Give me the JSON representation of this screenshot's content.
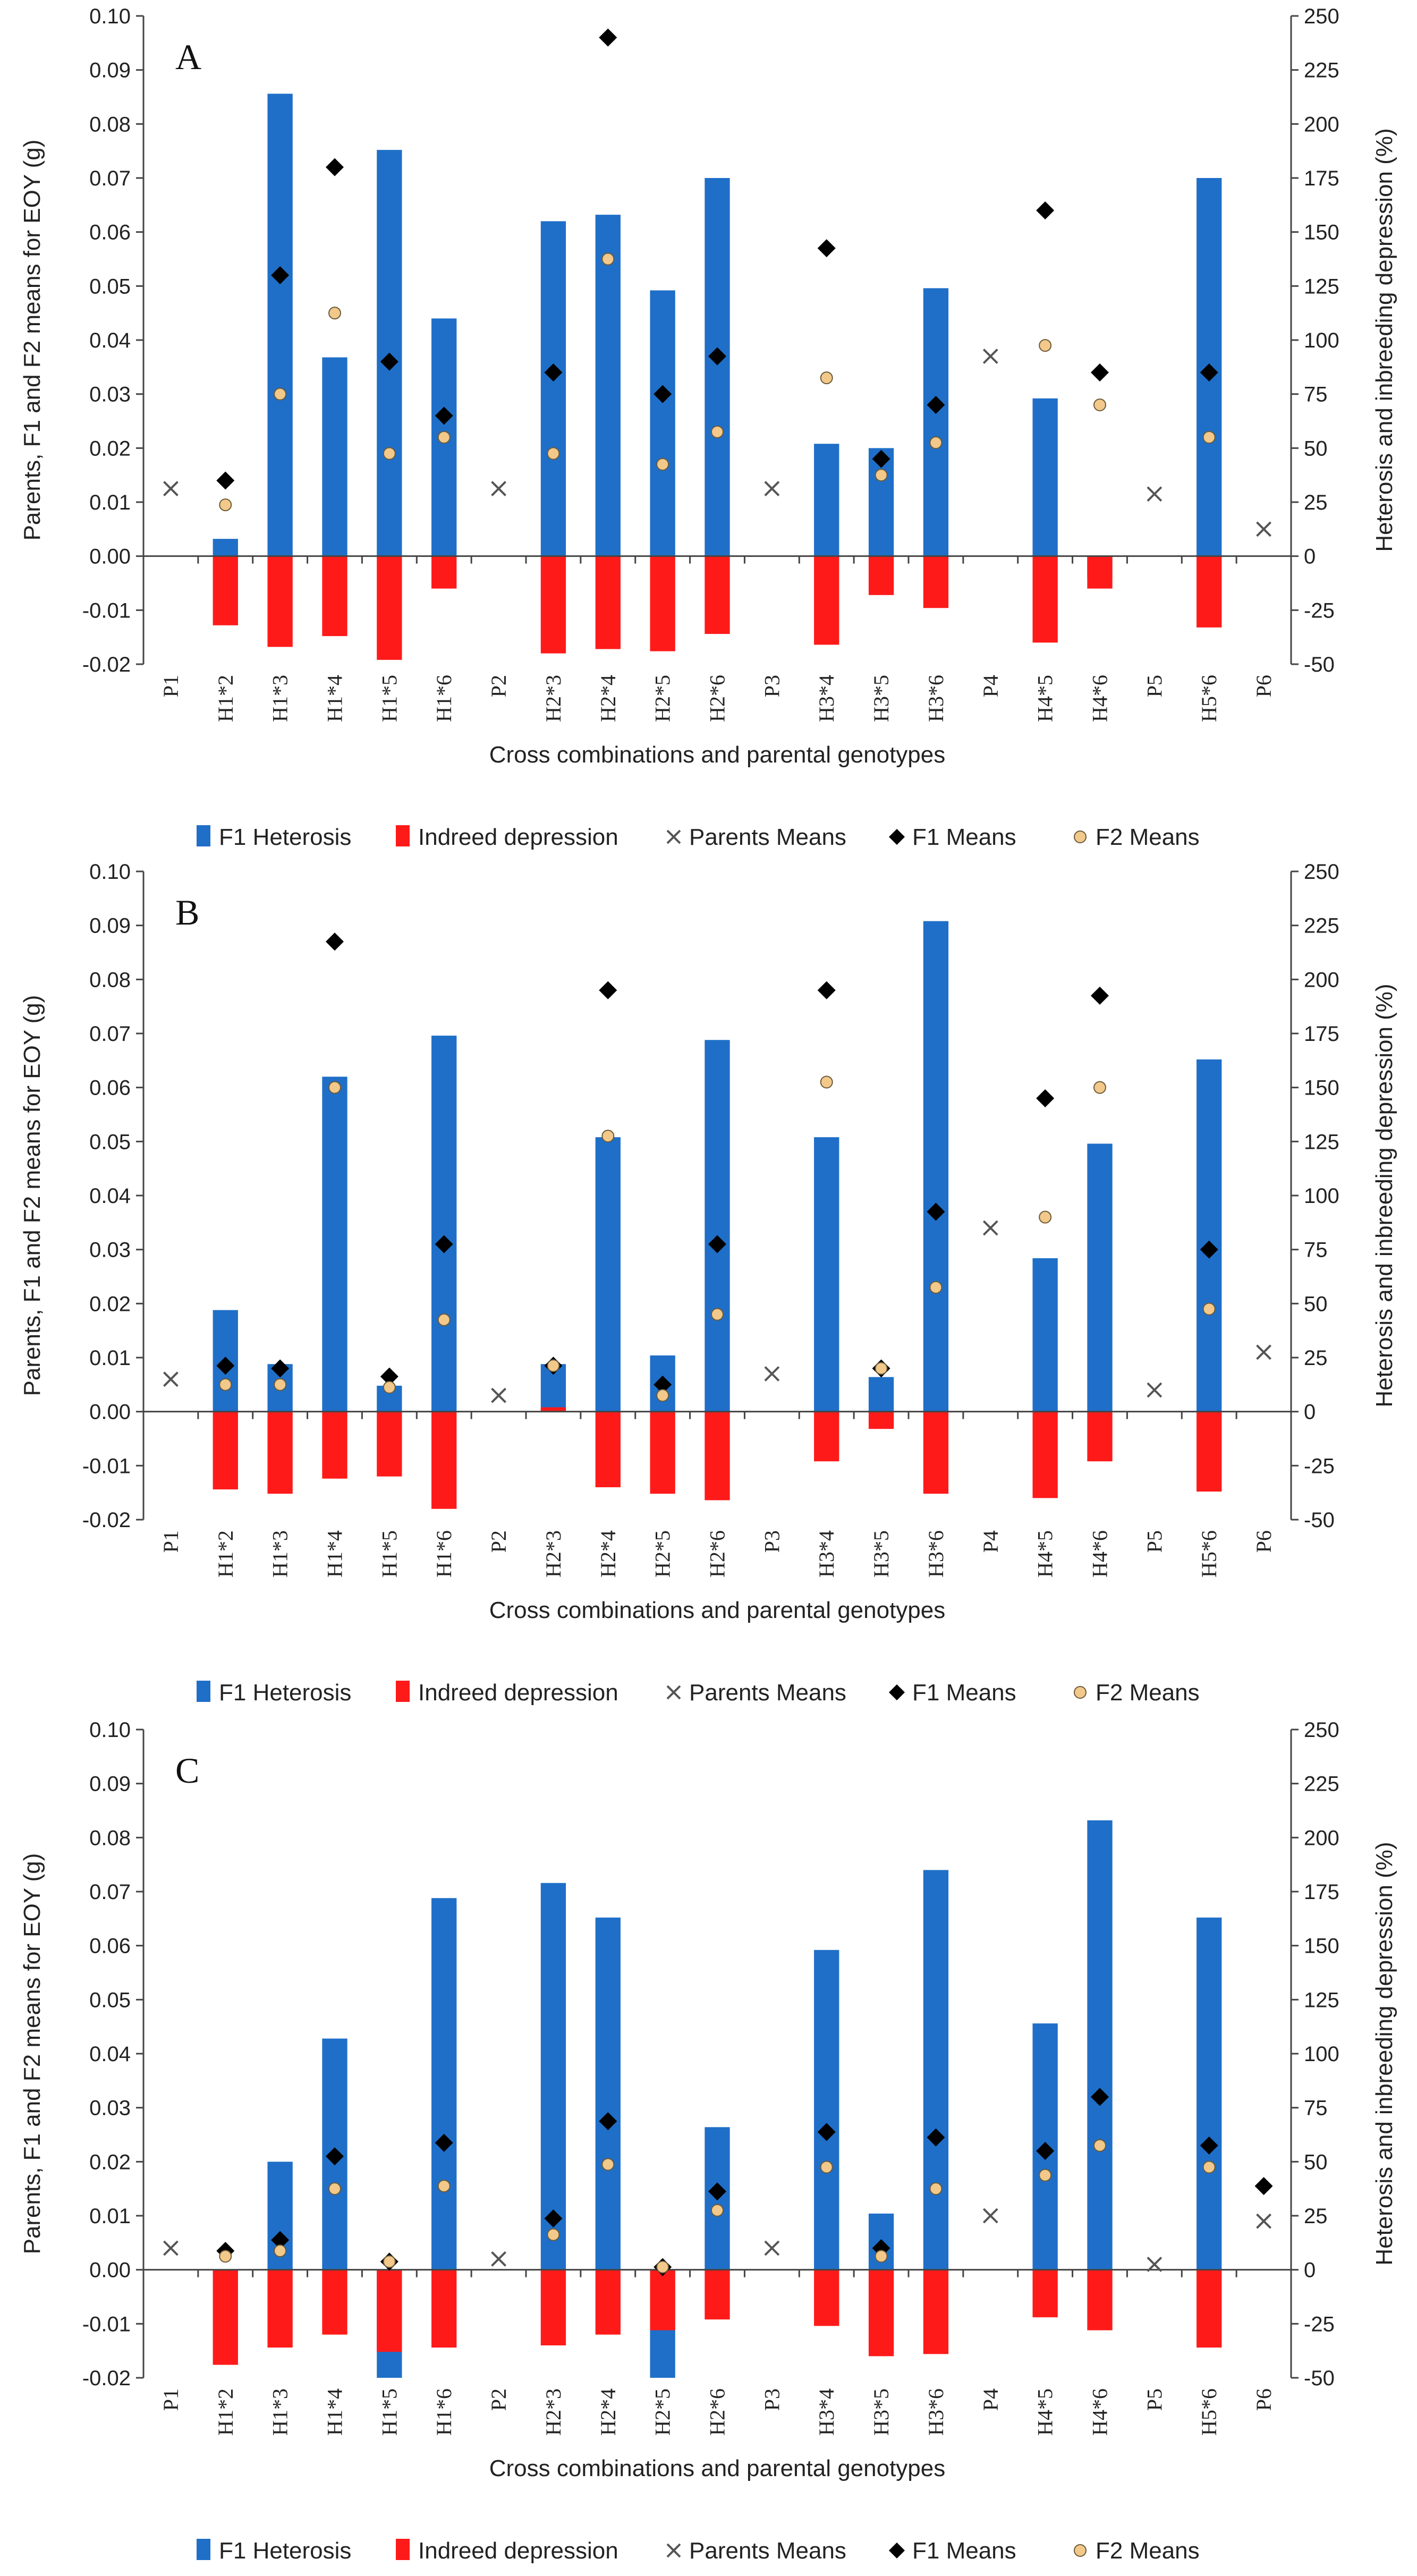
{
  "chart_data": [
    {
      "type": "bar",
      "panel_label": "A",
      "categories": [
        "P1",
        "H1*2",
        "H1*3",
        "H1*4",
        "H1*5",
        "H1*6",
        "P2",
        "H2*3",
        "H2*4",
        "H2*5",
        "H2*6",
        "P3",
        "H3*4",
        "H3*5",
        "H3*6",
        "P4",
        "H4*5",
        "H4*6",
        "P5",
        "H5*6",
        "P6"
      ],
      "xlabel": "Cross combinations and parental genotypes",
      "ylabel": "Parents, F1 and F2 means for EOY (g)",
      "y2label": "Heterosis and inbreeding depression (%)",
      "ylim": [
        -0.02,
        0.1
      ],
      "y2lim": [
        -50,
        250
      ],
      "y_ticks": [
        "-0.02",
        "-0.01",
        "0.00",
        "0.01",
        "0.02",
        "0.03",
        "0.04",
        "0.05",
        "0.06",
        "0.07",
        "0.08",
        "0.09",
        "0.10"
      ],
      "y2_ticks": [
        "-50",
        "-25",
        "0",
        "25",
        "50",
        "75",
        "100",
        "125",
        "150",
        "175",
        "200",
        "225",
        "250"
      ],
      "series": [
        {
          "name": "F1 Heterosis",
          "kind": "bar",
          "axis": "right",
          "color": "#1f6fc8",
          "values": [
            null,
            8,
            214,
            92,
            188,
            110,
            null,
            155,
            158,
            123,
            175,
            null,
            52,
            50,
            124,
            null,
            73,
            -10,
            null,
            175,
            null
          ]
        },
        {
          "name": "Indreed depression",
          "kind": "bar",
          "axis": "right",
          "color": "#ff1a1a",
          "values": [
            null,
            -32,
            -42,
            -37,
            -48,
            -15,
            null,
            -45,
            -43,
            -44,
            -36,
            null,
            -41,
            -18,
            -24,
            null,
            -40,
            -15,
            null,
            -33,
            null
          ]
        },
        {
          "name": "Parents Means",
          "kind": "marker",
          "marker": "x",
          "axis": "left",
          "color": "#555555",
          "values": [
            0.0125,
            null,
            null,
            null,
            null,
            null,
            0.0125,
            null,
            null,
            null,
            null,
            0.0125,
            null,
            null,
            null,
            0.037,
            null,
            null,
            0.0115,
            null,
            0.005
          ]
        },
        {
          "name": "F1 Means",
          "kind": "marker",
          "marker": "diamond",
          "axis": "left",
          "color": "#000000",
          "values": [
            null,
            0.014,
            0.052,
            0.072,
            0.036,
            0.026,
            null,
            0.034,
            0.096,
            0.03,
            0.037,
            null,
            0.057,
            0.018,
            0.028,
            null,
            0.064,
            0.034,
            null,
            0.034,
            null
          ]
        },
        {
          "name": "F2 Means",
          "kind": "marker",
          "marker": "circle",
          "axis": "left",
          "color": "#f2c98a",
          "values": [
            null,
            0.0095,
            0.03,
            0.045,
            0.019,
            0.022,
            null,
            0.019,
            0.055,
            0.017,
            0.023,
            null,
            0.033,
            0.015,
            0.021,
            null,
            0.039,
            0.028,
            null,
            0.022,
            null
          ]
        }
      ]
    },
    {
      "type": "bar",
      "panel_label": "B",
      "categories": [
        "P1",
        "H1*2",
        "H1*3",
        "H1*4",
        "H1*5",
        "H1*6",
        "P2",
        "H2*3",
        "H2*4",
        "H2*5",
        "H2*6",
        "P3",
        "H3*4",
        "H3*5",
        "H3*6",
        "P4",
        "H4*5",
        "H4*6",
        "P5",
        "H5*6",
        "P6"
      ],
      "xlabel": "Cross combinations and parental genotypes",
      "ylabel": "Parents, F1 and F2 means for EOY (g)",
      "y2label": "Heterosis and inbreeding depression (%)",
      "ylim": [
        -0.02,
        0.1
      ],
      "y2lim": [
        -50,
        250
      ],
      "y_ticks": [
        "-0.02",
        "-0.01",
        "0.00",
        "0.01",
        "0.02",
        "0.03",
        "0.04",
        "0.05",
        "0.06",
        "0.07",
        "0.08",
        "0.09",
        "0.10"
      ],
      "y2_ticks": [
        "-50",
        "-25",
        "0",
        "25",
        "50",
        "75",
        "100",
        "125",
        "150",
        "175",
        "200",
        "225",
        "250"
      ],
      "series": [
        {
          "name": "F1 Heterosis",
          "kind": "bar",
          "axis": "right",
          "color": "#1f6fc8",
          "values": [
            null,
            47,
            22,
            155,
            12,
            174,
            null,
            22,
            127,
            26,
            172,
            null,
            127,
            16,
            227,
            null,
            71,
            124,
            null,
            163,
            null
          ]
        },
        {
          "name": "Indreed depression",
          "kind": "bar",
          "axis": "right",
          "color": "#ff1a1a",
          "values": [
            null,
            -36,
            -38,
            -31,
            -30,
            -45,
            null,
            2,
            -35,
            -38,
            -41,
            null,
            -23,
            -8,
            -38,
            null,
            -40,
            -23,
            null,
            -37,
            null
          ]
        },
        {
          "name": "Parents Means",
          "kind": "marker",
          "marker": "x",
          "axis": "left",
          "color": "#555555",
          "values": [
            0.006,
            null,
            null,
            null,
            null,
            null,
            0.003,
            null,
            null,
            null,
            null,
            0.007,
            null,
            null,
            null,
            0.034,
            null,
            null,
            0.004,
            null,
            0.011
          ]
        },
        {
          "name": "F1 Means",
          "kind": "marker",
          "marker": "diamond",
          "axis": "left",
          "color": "#000000",
          "values": [
            null,
            0.0085,
            0.008,
            0.087,
            0.0065,
            0.031,
            null,
            0.0085,
            0.078,
            0.005,
            0.031,
            null,
            0.078,
            0.008,
            0.037,
            null,
            0.058,
            0.077,
            null,
            0.03,
            null
          ]
        },
        {
          "name": "F2 Means",
          "kind": "marker",
          "marker": "circle",
          "axis": "left",
          "color": "#f2c98a",
          "values": [
            null,
            0.005,
            0.005,
            0.06,
            0.0045,
            0.017,
            null,
            0.0085,
            0.051,
            0.003,
            0.018,
            null,
            0.061,
            0.008,
            0.023,
            null,
            0.036,
            0.06,
            null,
            0.019,
            null
          ]
        }
      ]
    },
    {
      "type": "bar",
      "panel_label": "C",
      "categories": [
        "P1",
        "H1*2",
        "H1*3",
        "H1*4",
        "H1*5",
        "H1*6",
        "P2",
        "H2*3",
        "H2*4",
        "H2*5",
        "H2*6",
        "P3",
        "H3*4",
        "H3*5",
        "H3*6",
        "P4",
        "H4*5",
        "H4*6",
        "P5",
        "H5*6",
        "P6"
      ],
      "xlabel": "Cross combinations and parental genotypes",
      "ylabel": "Parents, F1 and F2 means for EOY (g)",
      "y2label": "Heterosis and inbreeding depression (%)",
      "ylim": [
        -0.02,
        0.1
      ],
      "y2lim": [
        -50,
        250
      ],
      "y_ticks": [
        "-0.02",
        "-0.01",
        "0.00",
        "0.01",
        "0.02",
        "0.03",
        "0.04",
        "0.05",
        "0.06",
        "0.07",
        "0.08",
        "0.09",
        "0.10"
      ],
      "y2_ticks": [
        "-50",
        "-25",
        "0",
        "25",
        "50",
        "75",
        "100",
        "125",
        "150",
        "175",
        "200",
        "225",
        "250"
      ],
      "series": [
        {
          "name": "F1 Heterosis",
          "kind": "bar",
          "axis": "right",
          "color": "#1f6fc8",
          "values": [
            null,
            -2,
            50,
            107,
            -50,
            172,
            null,
            179,
            163,
            -50,
            66,
            null,
            148,
            26,
            185,
            null,
            114,
            208,
            null,
            163,
            null
          ]
        },
        {
          "name": "Indreed depression",
          "kind": "bar",
          "axis": "right",
          "color": "#ff1a1a",
          "values": [
            null,
            -44,
            -36,
            -30,
            -38,
            -36,
            null,
            -35,
            -30,
            -28,
            -23,
            null,
            -26,
            -40,
            -39,
            null,
            -22,
            -28,
            null,
            -36,
            null
          ]
        },
        {
          "name": "Parents Means",
          "kind": "marker",
          "marker": "x",
          "axis": "left",
          "color": "#555555",
          "values": [
            0.004,
            null,
            null,
            null,
            null,
            null,
            0.002,
            null,
            null,
            null,
            null,
            0.004,
            null,
            null,
            null,
            0.01,
            null,
            null,
            0.001,
            null,
            0.009
          ]
        },
        {
          "name": "F1 Means",
          "kind": "marker",
          "marker": "diamond",
          "axis": "left",
          "color": "#000000",
          "values": [
            null,
            0.0035,
            0.0055,
            0.021,
            0.0015,
            0.0235,
            null,
            0.0095,
            0.0275,
            0.0005,
            0.0145,
            null,
            0.0255,
            0.004,
            0.0245,
            null,
            0.022,
            0.032,
            null,
            0.023,
            0.0155
          ]
        },
        {
          "name": "F2 Means",
          "kind": "marker",
          "marker": "circle",
          "axis": "left",
          "color": "#f2c98a",
          "values": [
            null,
            0.0025,
            0.0035,
            0.015,
            0.0015,
            0.0155,
            null,
            0.0065,
            0.0195,
            0.0005,
            0.011,
            null,
            0.019,
            0.0025,
            0.015,
            null,
            0.0175,
            0.023,
            null,
            0.019,
            null
          ]
        }
      ]
    }
  ]
}
